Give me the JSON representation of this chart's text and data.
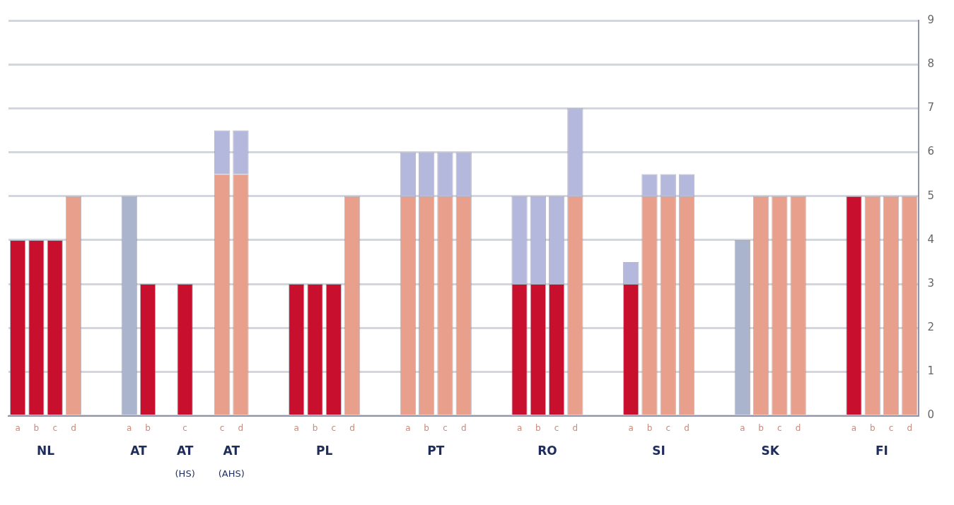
{
  "chart_data": {
    "type": "bar",
    "stacked": true,
    "categories": [
      "a",
      "b",
      "c",
      "d",
      null,
      null,
      "a",
      "b",
      null,
      "c",
      null,
      "c",
      "d",
      null,
      null,
      "a",
      "b",
      "c",
      "d",
      null,
      null,
      "a",
      "b",
      "c",
      "d",
      null,
      null,
      "a",
      "b",
      "c",
      "d",
      null,
      null,
      "a",
      "b",
      "c",
      "d",
      null,
      null,
      "a",
      "b",
      "c",
      "d",
      null,
      null,
      "a",
      "b",
      "c",
      "d"
    ],
    "series": [
      {
        "color": "#c8102e",
        "values": [
          4,
          4,
          4,
          null,
          null,
          null,
          null,
          3,
          null,
          3,
          null,
          null,
          null,
          null,
          null,
          3,
          3,
          3,
          null,
          null,
          null,
          null,
          null,
          null,
          null,
          null,
          null,
          3,
          3,
          3,
          null,
          null,
          null,
          3,
          null,
          null,
          null,
          null,
          null,
          null,
          null,
          null,
          null,
          null,
          null,
          5,
          null,
          null,
          null
        ]
      },
      {
        "color": "#aab4cc",
        "values": [
          null,
          null,
          null,
          null,
          null,
          null,
          5,
          null,
          null,
          null,
          null,
          null,
          null,
          null,
          null,
          null,
          null,
          null,
          null,
          null,
          null,
          null,
          null,
          null,
          null,
          null,
          null,
          null,
          null,
          null,
          null,
          null,
          null,
          null,
          null,
          null,
          null,
          null,
          null,
          4,
          null,
          null,
          null,
          null,
          null,
          null,
          null,
          null,
          null
        ]
      },
      {
        "color": "#e8a08c",
        "values": [
          null,
          null,
          null,
          5,
          null,
          null,
          null,
          null,
          null,
          null,
          null,
          5.5,
          5.5,
          null,
          null,
          null,
          null,
          null,
          5,
          null,
          null,
          5,
          5,
          5,
          5,
          null,
          null,
          null,
          null,
          null,
          5,
          null,
          null,
          null,
          5,
          5,
          5,
          null,
          null,
          null,
          5,
          5,
          5,
          null,
          null,
          null,
          5,
          5,
          5
        ]
      },
      {
        "color": "#b4b8dc",
        "values": [
          null,
          null,
          null,
          null,
          null,
          null,
          null,
          null,
          null,
          null,
          null,
          1,
          1,
          null,
          null,
          null,
          null,
          null,
          null,
          null,
          null,
          1,
          1,
          1,
          1,
          null,
          null,
          2,
          2,
          2,
          2,
          null,
          null,
          0.5,
          0.5,
          0.5,
          0.5,
          null,
          null,
          null,
          null,
          null,
          null,
          null,
          null,
          null,
          null,
          null,
          null
        ]
      }
    ],
    "ylim": [
      0,
      9
    ],
    "yticks": [
      0,
      1,
      2,
      3,
      4,
      5,
      6,
      7,
      8,
      9
    ],
    "grid": "y",
    "legend": false,
    "annotations": [
      "NL",
      "AT",
      "AT\n(HS)",
      "AT\n(AHS)",
      "PL",
      "PT",
      "RO",
      "SI",
      "SK",
      "FI"
    ]
  }
}
